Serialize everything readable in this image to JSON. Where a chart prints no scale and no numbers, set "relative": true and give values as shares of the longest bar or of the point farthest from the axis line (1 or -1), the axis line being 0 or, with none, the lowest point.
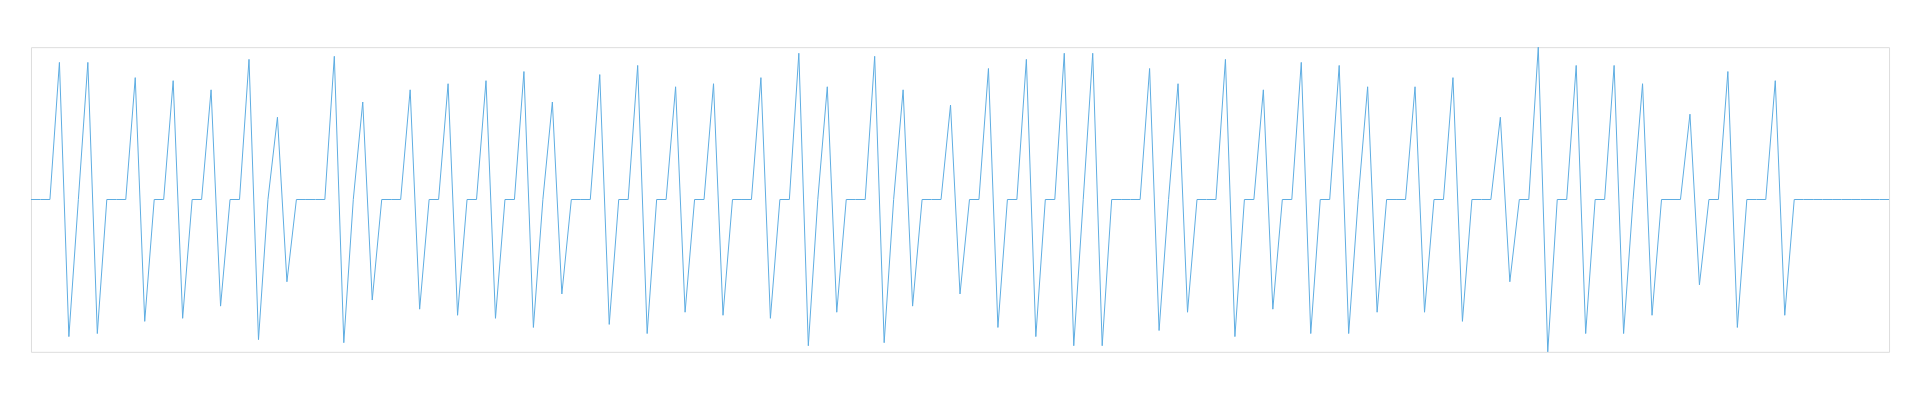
{
  "chart_data": {
    "type": "line",
    "relative": true,
    "color": "#5dade2",
    "categories": [
      null,
      null,
      null,
      null,
      null,
      null,
      null,
      null,
      null,
      null,
      null,
      null,
      null,
      null,
      null,
      null,
      null,
      null,
      null,
      null,
      null,
      null,
      null,
      null,
      null,
      null,
      null,
      null,
      null,
      null,
      null,
      null,
      null,
      null,
      null,
      null,
      null,
      null,
      null,
      null,
      null,
      null,
      null,
      null,
      null,
      null,
      null,
      null,
      null,
      null,
      null,
      null,
      null,
      null,
      null,
      null,
      null,
      null,
      null,
      null,
      null,
      null,
      null,
      null,
      null,
      null,
      null,
      null,
      null,
      null,
      null,
      null,
      null,
      null,
      null,
      null,
      null,
      null,
      null,
      null,
      null,
      null,
      null,
      null,
      null,
      null,
      null,
      null,
      null,
      null,
      null,
      null,
      null,
      null,
      null,
      null,
      null,
      null,
      null,
      null,
      null,
      null,
      null,
      null,
      null,
      null,
      null,
      null,
      null,
      null,
      null,
      null,
      null,
      null,
      null,
      null,
      null,
      null,
      null,
      null,
      null,
      null,
      null,
      null,
      null,
      null,
      null,
      null,
      null,
      null,
      null,
      null,
      null,
      null,
      null,
      null,
      null,
      null,
      null,
      null,
      null,
      null,
      null,
      null,
      null,
      null,
      null,
      null,
      null,
      null,
      null,
      null,
      null,
      null,
      null,
      null,
      null,
      null,
      null,
      null,
      null,
      null,
      null,
      null,
      null,
      null,
      null,
      null,
      null,
      null,
      null,
      null,
      null,
      null,
      null,
      null,
      null,
      null,
      null,
      null,
      null,
      null,
      null,
      null,
      null,
      null,
      null,
      null,
      null,
      null,
      null,
      null,
      null,
      null,
      null,
      null,
      null
    ],
    "values": [
      0.5,
      0.5,
      0.5,
      0.95,
      0.05,
      0.5,
      0.95,
      0.06,
      0.5,
      0.5,
      0.5,
      0.9,
      0.1,
      0.5,
      0.5,
      0.89,
      0.11,
      0.5,
      0.5,
      0.86,
      0.15,
      0.5,
      0.5,
      0.96,
      0.04,
      0.5,
      0.77,
      0.23,
      0.5,
      0.5,
      0.5,
      0.5,
      0.97,
      0.03,
      0.5,
      0.82,
      0.17,
      0.5,
      0.5,
      0.5,
      0.86,
      0.14,
      0.5,
      0.5,
      0.88,
      0.12,
      0.5,
      0.5,
      0.89,
      0.11,
      0.5,
      0.5,
      0.92,
      0.08,
      0.5,
      0.82,
      0.19,
      0.5,
      0.5,
      0.5,
      0.91,
      0.09,
      0.5,
      0.5,
      0.94,
      0.06,
      0.5,
      0.5,
      0.87,
      0.13,
      0.5,
      0.5,
      0.88,
      0.12,
      0.5,
      0.5,
      0.5,
      0.9,
      0.11,
      0.5,
      0.5,
      0.98,
      0.02,
      0.5,
      0.87,
      0.13,
      0.5,
      0.5,
      0.5,
      0.97,
      0.03,
      0.5,
      0.86,
      0.15,
      0.5,
      0.5,
      0.5,
      0.81,
      0.19,
      0.5,
      0.5,
      0.93,
      0.08,
      0.5,
      0.5,
      0.96,
      0.05,
      0.5,
      0.5,
      0.98,
      0.02,
      0.5,
      0.98,
      0.02,
      0.5,
      0.5,
      0.5,
      0.5,
      0.93,
      0.07,
      0.5,
      0.88,
      0.13,
      0.5,
      0.5,
      0.5,
      0.96,
      0.05,
      0.5,
      0.5,
      0.86,
      0.14,
      0.5,
      0.5,
      0.95,
      0.06,
      0.5,
      0.5,
      0.94,
      0.06,
      0.5,
      0.87,
      0.13,
      0.5,
      0.5,
      0.5,
      0.87,
      0.13,
      0.5,
      0.5,
      0.9,
      0.1,
      0.5,
      0.5,
      0.5,
      0.77,
      0.23,
      0.5,
      0.5,
      1,
      0,
      0.5,
      0.5,
      0.94,
      0.06,
      0.5,
      0.5,
      0.94,
      0.06,
      0.5,
      0.88,
      0.12,
      0.5,
      0.5,
      0.5,
      0.78,
      0.22,
      0.5,
      0.5,
      0.92,
      0.08,
      0.5,
      0.5,
      0.5,
      0.89,
      0.12,
      0.5,
      0.5,
      0.5,
      0.5,
      0.5,
      0.5,
      0.5,
      0.5,
      0.5,
      0.5,
      0.5
    ]
  }
}
